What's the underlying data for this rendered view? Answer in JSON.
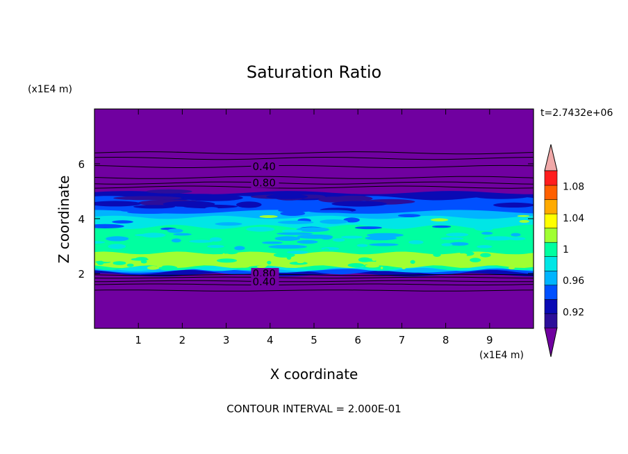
{
  "chart_data": {
    "type": "heatmap",
    "title": "Saturation Ratio",
    "xlabel": "X coordinate",
    "ylabel": "Z coordinate",
    "x_unit_label": "(x1E4 m)",
    "y_unit_label": "(x1E4 m)",
    "time_label": "t=2.7432e+06",
    "footer": "CONTOUR INTERVAL = 2.000E-01",
    "xlim": [
      0,
      10
    ],
    "ylim": [
      0,
      8
    ],
    "x_ticks": [
      1,
      2,
      3,
      4,
      5,
      6,
      7,
      8,
      9
    ],
    "x_tick_labels": [
      "1",
      "2",
      "3",
      "4",
      "5",
      "6",
      "7",
      "8",
      "9"
    ],
    "y_ticks": [
      2,
      4,
      6
    ],
    "y_tick_labels": [
      "2",
      "4",
      "6"
    ],
    "contour_labels": [
      {
        "text": "0.40",
        "x": 3.6,
        "z": 5.9
      },
      {
        "text": "0.80",
        "x": 3.6,
        "z": 5.3
      },
      {
        "text": "0.80",
        "x": 3.6,
        "z": 2.0
      },
      {
        "text": "0.40",
        "x": 3.6,
        "z": 1.7
      }
    ],
    "colorbar": {
      "tick_labels": [
        "0.92",
        "0.96",
        "1",
        "1.04",
        "1.08"
      ],
      "tick_values": [
        0.92,
        0.96,
        1.0,
        1.04,
        1.08
      ],
      "levels": [
        0.9,
        0.92,
        0.94,
        0.96,
        0.98,
        1.0,
        1.02,
        1.04,
        1.06,
        1.08,
        1.1
      ],
      "colors": [
        "#2c0e9a",
        "#0a0ab4",
        "#0050ff",
        "#00b4ff",
        "#00e6e6",
        "#00ffa0",
        "#a0ff32",
        "#ffff00",
        "#ffaa00",
        "#ff6000",
        "#ff1e1e"
      ],
      "under_color": "#7000a0",
      "over_color": "#f0a8a8"
    },
    "background_color": "#7000a0"
  }
}
